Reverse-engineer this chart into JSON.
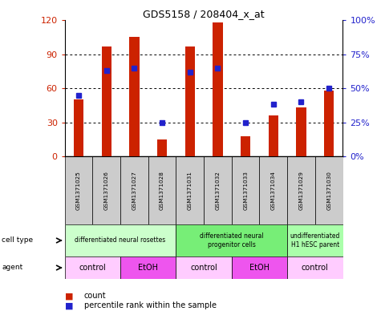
{
  "title": "GDS5158 / 208404_x_at",
  "samples": [
    "GSM1371025",
    "GSM1371026",
    "GSM1371027",
    "GSM1371028",
    "GSM1371031",
    "GSM1371032",
    "GSM1371033",
    "GSM1371034",
    "GSM1371029",
    "GSM1371030"
  ],
  "counts": [
    50,
    97,
    105,
    15,
    97,
    118,
    18,
    36,
    43,
    58
  ],
  "percentiles": [
    45,
    63,
    65,
    25,
    62,
    65,
    25,
    38,
    40,
    50
  ],
  "ylim_left": [
    0,
    120
  ],
  "ylim_right": [
    0,
    100
  ],
  "yticks_left": [
    0,
    30,
    60,
    90,
    120
  ],
  "yticks_right": [
    0,
    25,
    50,
    75,
    100
  ],
  "ytick_labels_left": [
    "0",
    "30",
    "60",
    "90",
    "120"
  ],
  "ytick_labels_right": [
    "0%",
    "25%",
    "50%",
    "75%",
    "100%"
  ],
  "bar_color": "#CC2200",
  "dot_color": "#2222CC",
  "cell_type_groups": [
    {
      "label": "differentiated neural rosettes",
      "start": 0,
      "end": 4,
      "color": "#CCFFCC"
    },
    {
      "label": "differentiated neural\nprogenitor cells",
      "start": 4,
      "end": 8,
      "color": "#77EE77"
    },
    {
      "label": "undifferentiated\nH1 hESC parent",
      "start": 8,
      "end": 10,
      "color": "#AAFFAA"
    }
  ],
  "agent_groups": [
    {
      "label": "control",
      "start": 0,
      "end": 2,
      "color": "#FFCCFF"
    },
    {
      "label": "EtOH",
      "start": 2,
      "end": 4,
      "color": "#EE55EE"
    },
    {
      "label": "control",
      "start": 4,
      "end": 6,
      "color": "#FFCCFF"
    },
    {
      "label": "EtOH",
      "start": 6,
      "end": 8,
      "color": "#EE55EE"
    },
    {
      "label": "control",
      "start": 8,
      "end": 10,
      "color": "#FFCCFF"
    }
  ],
  "legend_count_color": "#CC2200",
  "legend_dot_color": "#2222CC",
  "grid_color": "#999999",
  "xlabel_row_color": "#CCCCCC",
  "bar_width": 0.35
}
